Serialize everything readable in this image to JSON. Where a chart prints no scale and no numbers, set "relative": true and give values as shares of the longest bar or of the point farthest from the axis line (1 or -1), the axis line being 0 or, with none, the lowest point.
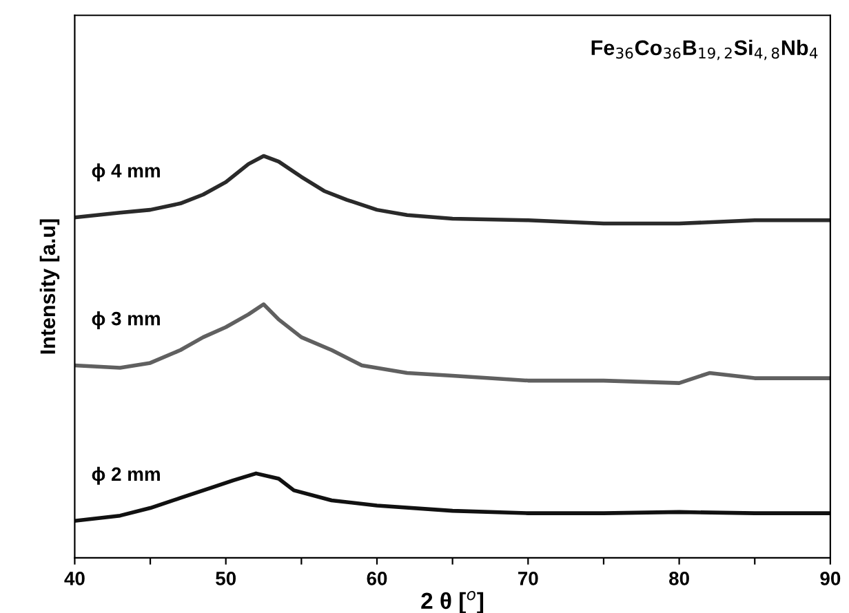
{
  "chart_data": {
    "type": "line",
    "relative": true,
    "xlabel": "2 θ [$^{o}$]",
    "ylabel": "Intensity [a.u]",
    "annotations": [
      "Fe$_{36}$Co$_{36}$B$_{19,2}$Si$_{4,8}$Nb$_{4}$"
    ],
    "xlim": [
      40,
      90
    ],
    "xticks": [
      40,
      {
        "value": 45,
        "label": null
      },
      50,
      {
        "value": 55,
        "label": null
      },
      60,
      {
        "value": 65,
        "label": null
      },
      70,
      {
        "value": 75,
        "label": null
      },
      80,
      {
        "value": 85,
        "label": null
      },
      90
    ],
    "x": [
      40,
      43,
      45,
      47,
      48.5,
      50,
      51.5,
      52.5,
      53.5,
      55,
      56.5,
      58,
      60,
      62,
      65,
      70,
      75,
      80,
      85,
      90
    ],
    "series": [
      {
        "name": "ϕ 4 mm",
        "color": "#2a2a2a",
        "values": [
          0.847,
          0.859,
          0.866,
          0.882,
          0.904,
          0.935,
          0.98,
          1.0,
          0.986,
          0.948,
          0.913,
          0.891,
          0.866,
          0.853,
          0.844,
          0.84,
          0.832,
          0.832,
          0.84,
          0.84
        ]
      },
      {
        "name": "ϕ 3 mm",
        "color": "#606060",
        "x": [
          40,
          43,
          45,
          47,
          48.5,
          50,
          51.5,
          52.5,
          53.5,
          55,
          57,
          59,
          62,
          65,
          70,
          75,
          80,
          82,
          85,
          90
        ],
        "values": [
          0.479,
          0.473,
          0.485,
          0.517,
          0.549,
          0.574,
          0.606,
          0.631,
          0.593,
          0.549,
          0.517,
          0.479,
          0.46,
          0.453,
          0.441,
          0.441,
          0.435,
          0.46,
          0.447,
          0.447
        ]
      },
      {
        "name": "ϕ 2 mm",
        "color": "#111111",
        "x": [
          40,
          43,
          45,
          47,
          49,
          50.5,
          52,
          53.5,
          54.5,
          57,
          60,
          65,
          70,
          75,
          80,
          85,
          90
        ],
        "values": [
          0.092,
          0.105,
          0.124,
          0.149,
          0.174,
          0.193,
          0.21,
          0.197,
          0.168,
          0.143,
          0.13,
          0.117,
          0.111,
          0.111,
          0.114,
          0.111,
          0.111
        ]
      }
    ],
    "legend": false,
    "grid": false
  }
}
